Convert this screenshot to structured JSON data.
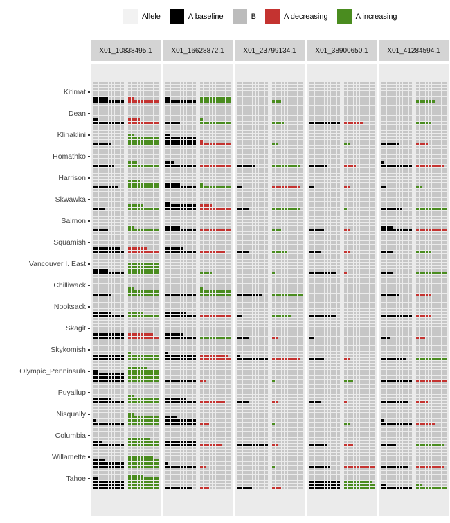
{
  "legend": {
    "items": [
      {
        "label": "Allele",
        "color": "#f2f2f2"
      },
      {
        "label": "A baseline",
        "color": "#000000"
      },
      {
        "label": "B",
        "color": "#bcbcbc"
      },
      {
        "label": "A decreasing",
        "color": "#c43330"
      },
      {
        "label": "A increasing",
        "color": "#4a8c1f"
      }
    ]
  },
  "colors": {
    "panel_bg": "#ebebeb",
    "strip_bg": "#d4d4d4",
    "square_empty": "#c6c6c6",
    "baseline": "#000000",
    "decreasing": "#c43330",
    "increasing": "#4a8c1f",
    "label_text": "#444444",
    "strip_text": "#141414"
  },
  "chart_data": {
    "type": "waffle-grid",
    "title": "",
    "legend_entries": [
      "Allele",
      "A baseline",
      "B",
      "A decreasing",
      "A increasing"
    ],
    "facets": [
      "X01_10838495.1",
      "X01_16628872.1",
      "X01_23799134.1",
      "X01_38900650.1",
      "X01_41284594.1"
    ],
    "populations": [
      "Kitimat",
      "Dean",
      "Klinaklini",
      "Homathko",
      "Harrison",
      "Skwawka",
      "Salmon",
      "Squamish",
      "Vancouver I. East",
      "Chilliwack",
      "Nooksack",
      "Skagit",
      "Skykomish",
      "Olympic_Penninsula",
      "Puyallup",
      "Nisqually",
      "Columbia",
      "Willamette",
      "Tahoe"
    ],
    "waffle": {
      "cols": 10,
      "rows": 7,
      "total_squares": 70,
      "fill_order": "bottom-left, row by row upward"
    },
    "cell_format": [
      "a_baseline_filled_squares",
      "a_change_filled_squares",
      "change_direction"
    ],
    "cells": [
      [
        [
          15,
          12,
          "decreasing"
        ],
        [
          12,
          20,
          "increasing"
        ],
        [
          0,
          3,
          "increasing"
        ],
        [
          0,
          0,
          "none"
        ],
        [
          0,
          6,
          "increasing"
        ]
      ],
      [
        [
          12,
          14,
          "decreasing"
        ],
        [
          5,
          11,
          "increasing"
        ],
        [
          0,
          4,
          "increasing"
        ],
        [
          10,
          6,
          "decreasing"
        ],
        [
          0,
          5,
          "increasing"
        ]
      ],
      [
        [
          6,
          32,
          "increasing"
        ],
        [
          32,
          11,
          "decreasing"
        ],
        [
          0,
          2,
          "increasing"
        ],
        [
          0,
          2,
          "increasing"
        ],
        [
          6,
          4,
          "decreasing"
        ]
      ],
      [
        [
          7,
          13,
          "increasing"
        ],
        [
          13,
          10,
          "decreasing"
        ],
        [
          6,
          9,
          "increasing"
        ],
        [
          6,
          4,
          "decreasing"
        ],
        [
          11,
          9,
          "decreasing"
        ]
      ],
      [
        [
          8,
          24,
          "increasing"
        ],
        [
          15,
          11,
          "increasing"
        ],
        [
          2,
          9,
          "decreasing"
        ],
        [
          2,
          2,
          "decreasing"
        ],
        [
          2,
          2,
          "increasing"
        ]
      ],
      [
        [
          4,
          15,
          "increasing"
        ],
        [
          22,
          14,
          "decreasing"
        ],
        [
          4,
          9,
          "increasing"
        ],
        [
          0,
          1,
          "increasing"
        ],
        [
          7,
          10,
          "increasing"
        ]
      ],
      [
        [
          5,
          12,
          "increasing"
        ],
        [
          15,
          10,
          "decreasing"
        ],
        [
          0,
          3,
          "increasing"
        ],
        [
          5,
          2,
          "decreasing"
        ],
        [
          14,
          10,
          "decreasing"
        ]
      ],
      [
        [
          19,
          16,
          "decreasing"
        ],
        [
          16,
          8,
          "decreasing"
        ],
        [
          4,
          5,
          "increasing"
        ],
        [
          4,
          2,
          "decreasing"
        ],
        [
          4,
          5,
          "increasing"
        ]
      ],
      [
        [
          15,
          40,
          "increasing"
        ],
        [
          0,
          4,
          "increasing"
        ],
        [
          0,
          1,
          "increasing"
        ],
        [
          9,
          1,
          "decreasing"
        ],
        [
          4,
          10,
          "increasing"
        ]
      ],
      [
        [
          6,
          22,
          "increasing"
        ],
        [
          10,
          21,
          "increasing"
        ],
        [
          8,
          10,
          "increasing"
        ],
        [
          0,
          0,
          "none"
        ],
        [
          6,
          5,
          "decreasing"
        ]
      ],
      [
        [
          16,
          15,
          "increasing"
        ],
        [
          17,
          10,
          "decreasing"
        ],
        [
          2,
          6,
          "increasing"
        ],
        [
          9,
          0,
          "none"
        ],
        [
          10,
          5,
          "decreasing"
        ]
      ],
      [
        [
          20,
          18,
          "decreasing"
        ],
        [
          16,
          10,
          "increasing"
        ],
        [
          4,
          2,
          "decreasing"
        ],
        [
          2,
          0,
          "none"
        ],
        [
          3,
          3,
          "decreasing"
        ]
      ],
      [
        [
          20,
          21,
          "increasing"
        ],
        [
          21,
          19,
          "decreasing"
        ],
        [
          11,
          9,
          "decreasing"
        ],
        [
          5,
          2,
          "decreasing"
        ],
        [
          8,
          10,
          "increasing"
        ]
      ],
      [
        [
          32,
          46,
          "increasing"
        ],
        [
          10,
          2,
          "decreasing"
        ],
        [
          0,
          1,
          "increasing"
        ],
        [
          0,
          3,
          "increasing"
        ],
        [
          10,
          10,
          "decreasing"
        ]
      ],
      [
        [
          16,
          22,
          "increasing"
        ],
        [
          17,
          8,
          "decreasing"
        ],
        [
          4,
          2,
          "decreasing"
        ],
        [
          4,
          1,
          "decreasing"
        ],
        [
          9,
          4,
          "decreasing"
        ]
      ],
      [
        [
          11,
          32,
          "increasing"
        ],
        [
          24,
          3,
          "decreasing"
        ],
        [
          0,
          1,
          "increasing"
        ],
        [
          0,
          2,
          "increasing"
        ],
        [
          11,
          6,
          "decreasing"
        ]
      ],
      [
        [
          13,
          27,
          "increasing"
        ],
        [
          20,
          7,
          "decreasing"
        ],
        [
          10,
          2,
          "decreasing"
        ],
        [
          6,
          3,
          "decreasing"
        ],
        [
          5,
          9,
          "increasing"
        ]
      ],
      [
        [
          24,
          38,
          "increasing"
        ],
        [
          11,
          2,
          "decreasing"
        ],
        [
          0,
          1,
          "increasing"
        ],
        [
          7,
          10,
          "decreasing"
        ],
        [
          9,
          9,
          "decreasing"
        ]
      ],
      [
        [
          32,
          45,
          "increasing"
        ],
        [
          9,
          3,
          "decreasing"
        ],
        [
          5,
          3,
          "decreasing"
        ],
        [
          30,
          29,
          "increasing"
        ],
        [
          12,
          12,
          "increasing"
        ]
      ]
    ]
  }
}
